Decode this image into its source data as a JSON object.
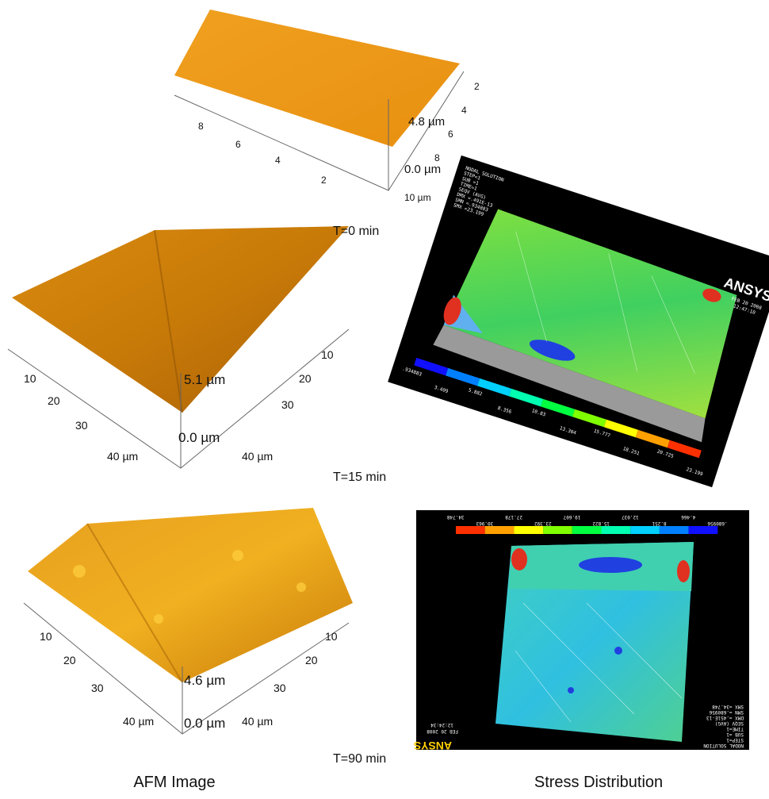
{
  "afm_panels": [
    {
      "time": "T=0 min",
      "height_top": "4.8 µm",
      "height_bottom": "0.0 µm",
      "left_axis": [
        "8",
        "6",
        "4",
        "2"
      ],
      "right_axis": [
        "2",
        "4",
        "6",
        "8",
        "10 µm"
      ]
    },
    {
      "time": "T=15 min",
      "height_top": "5.1 µm",
      "height_bottom": "0.0 µm",
      "left_axis": [
        "10",
        "20",
        "30",
        "40 µm"
      ],
      "right_axis": [
        "10",
        "20",
        "30",
        "40 µm"
      ]
    },
    {
      "time": "T=90 min",
      "height_top": "4.6 µm",
      "height_bottom": "0.0 µm",
      "left_axis": [
        "10",
        "20",
        "30",
        "40 µm"
      ],
      "right_axis": [
        "10",
        "20",
        "30",
        "40 µm"
      ]
    }
  ],
  "stress_panels": [
    {
      "header": [
        "NODAL SOLUTION",
        "STEP=1",
        "SUB =1",
        "TIME=1",
        "SEQV (AVG)",
        "DMX =.491E-13",
        "SMN =.934883",
        "SMX =23.199"
      ],
      "logo": "ANSYS",
      "date": "FEB 20 2008",
      "clock": "12:47:10",
      "legend": [
        ".934883",
        "3.409",
        "5.882",
        "8.356",
        "10.83",
        "13.304",
        "15.777",
        "18.251",
        "20.725",
        "23.199"
      ]
    },
    {
      "header": [
        "NODAL SOLUTION",
        "STEP=1",
        "SUB =1",
        "TIME=1",
        "SEQV (AVG)",
        "DMX =.451E-13",
        "SMN =.680956",
        "SMX =34.748"
      ],
      "logo": "ANSYS",
      "date": "FEB 20 2008",
      "clock": "12:24:34",
      "legend": [
        ".680956",
        "4.466",
        "8.251",
        "12.037",
        "15.822",
        "19.607",
        "23.392",
        "27.178",
        "30.963",
        "34.748"
      ]
    }
  ],
  "captions": {
    "left": "AFM Image",
    "right": "Stress Distribution"
  }
}
